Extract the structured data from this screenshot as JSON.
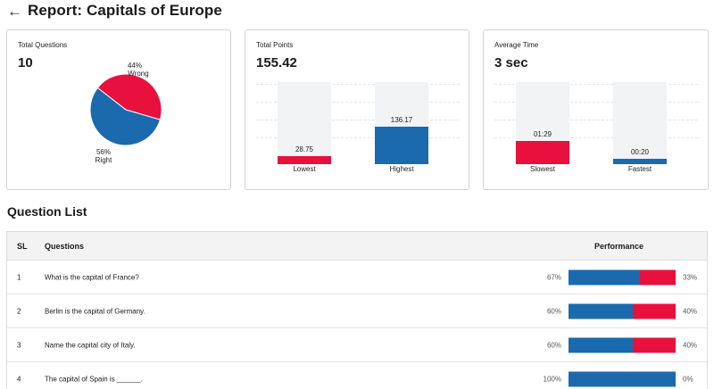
{
  "header": {
    "back_icon": "←",
    "title": "Report: Capitals of Europe"
  },
  "colors": {
    "correct": "#1a6aad",
    "wrong": "#e8103c",
    "track": "#f2f3f5"
  },
  "stats": {
    "total_questions": {
      "label": "Total Questions",
      "value": "10"
    },
    "total_points": {
      "label": "Total Points",
      "value": "155.42"
    },
    "average_time": {
      "label": "Average Time",
      "value": "3 sec"
    }
  },
  "chart_data": [
    {
      "type": "pie",
      "slices": [
        {
          "name": "Wrong",
          "percent_label": "44%",
          "value": 44,
          "color": "#e8103c"
        },
        {
          "name": "Right",
          "percent_label": "56%",
          "value": 56,
          "color": "#1a6aad"
        }
      ]
    },
    {
      "type": "bar",
      "categories": [
        "Lowest",
        "Highest"
      ],
      "values": [
        28.75,
        136.17
      ],
      "value_labels": [
        "28.75",
        "136.17"
      ],
      "colors": [
        "#e8103c",
        "#1a6aad"
      ],
      "ylim": [
        0,
        155.42
      ]
    },
    {
      "type": "bar",
      "categories": [
        "Slowest",
        "Fastest"
      ],
      "values": [
        89,
        20
      ],
      "value_labels": [
        "01:29",
        "00:20"
      ],
      "colors": [
        "#e8103c",
        "#1a6aad"
      ],
      "ylim": [
        0,
        100
      ]
    }
  ],
  "question_list": {
    "title": "Question List",
    "headers": {
      "sl": "SL",
      "questions": "Questions",
      "performance": "Performance"
    },
    "rows": [
      {
        "sl": "1",
        "question": "What is the capital of France?",
        "correct_label": "67%",
        "wrong_label": "33%",
        "correct": 67
      },
      {
        "sl": "2",
        "question": "Berlin is the capital of Germany.",
        "correct_label": "60%",
        "wrong_label": "40%",
        "correct": 60
      },
      {
        "sl": "3",
        "question": "Name the capital city of Italy.",
        "correct_label": "60%",
        "wrong_label": "40%",
        "correct": 60
      },
      {
        "sl": "4",
        "question": "The capital of Spain is ______.",
        "correct_label": "100%",
        "wrong_label": "0%",
        "correct": 100
      }
    ]
  }
}
